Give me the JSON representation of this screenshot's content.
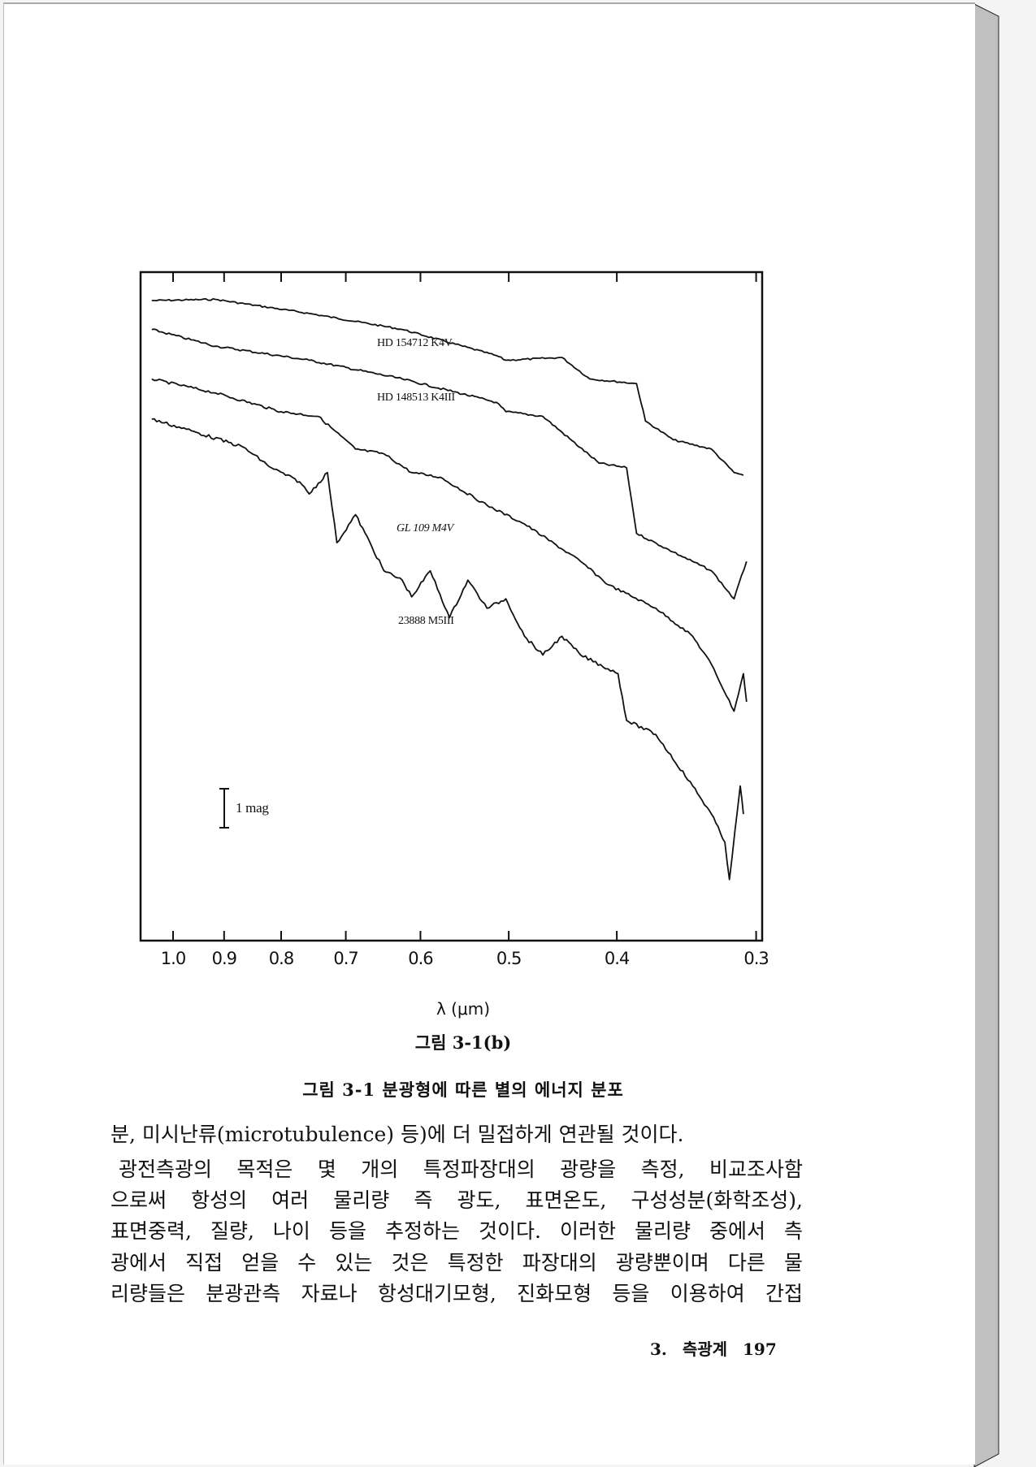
{
  "figure": {
    "subfigure_label": "그림 3-1(b)",
    "caption": "그림 3-1  분광형에 따른 별의 에너지 분포"
  },
  "body_text": [
    "분, 미시난류(microtubulence) 등)에 더 밀접하게 연관될 것이다.",
    "광전측광의 목적은 몇 개의 특정파장대의 광량을 측정, 비교조사함",
    "으로써 항성의 여러 물리량 즉 광도, 표면온도, 구성성분(화학조성),",
    "표면중력, 질량, 나이 등을 추정하는 것이다. 이러한 물리량 중에서 측",
    "광에서 직접 얻을 수 있는 것은 특정한 파장대의 광량뿐이며 다른 물",
    "리량들은 분광관측 자료나 항성대기모형, 진화모형 등을 이용하여 간접"
  ],
  "footer": {
    "chapter": "3. 측광계",
    "page_number": "197"
  },
  "chart_data": {
    "type": "line",
    "title": "",
    "xlabel": "λ (μm)",
    "ylabel": "",
    "x_scale": "log",
    "x_reversed": true,
    "xlim": [
      1.05,
      0.296
    ],
    "x_ticks": [
      1.0,
      0.9,
      0.8,
      0.7,
      0.6,
      0.5,
      0.4,
      0.3
    ],
    "x_tick_labels": [
      "1.0",
      "0.9",
      "0.8",
      "0.7",
      "0.6",
      "0.5",
      "0.4",
      "0.3"
    ],
    "y_units": "relative magnitude (increasing downward)",
    "ylim": [
      0,
      17.1
    ],
    "grid": false,
    "scale_bar_label": "1 mag",
    "scale_bar_value": 1,
    "line_color": "#111111",
    "series": [
      {
        "name": "HD 154712 K4V",
        "points": [
          [
            1.045,
            0.73
          ],
          [
            0.916,
            0.7
          ],
          [
            0.755,
            1.06
          ],
          [
            0.623,
            1.47
          ],
          [
            0.513,
            2.14
          ],
          [
            0.503,
            2.26
          ],
          [
            0.448,
            2.19
          ],
          [
            0.423,
            2.74
          ],
          [
            0.384,
            2.86
          ],
          [
            0.377,
            3.82
          ],
          [
            0.356,
            4.3
          ],
          [
            0.329,
            4.54
          ],
          [
            0.314,
            5.14
          ],
          [
            0.308,
            5.21
          ]
        ]
      },
      {
        "name": "HD 148513 K4III",
        "points": [
          [
            1.045,
            1.47
          ],
          [
            0.916,
            1.9
          ],
          [
            0.755,
            2.26
          ],
          [
            0.623,
            2.74
          ],
          [
            0.513,
            3.34
          ],
          [
            0.503,
            3.58
          ],
          [
            0.466,
            3.7
          ],
          [
            0.415,
            4.9
          ],
          [
            0.392,
            5.02
          ],
          [
            0.384,
            6.7
          ],
          [
            0.356,
            7.18
          ],
          [
            0.329,
            7.66
          ],
          [
            0.314,
            8.38
          ],
          [
            0.306,
            7.42
          ]
        ]
      },
      {
        "name": "GL 109 M4V",
        "points": [
          [
            1.045,
            2.74
          ],
          [
            0.916,
            3.1
          ],
          [
            0.8,
            3.58
          ],
          [
            0.741,
            3.7
          ],
          [
            0.686,
            4.54
          ],
          [
            0.647,
            4.66
          ],
          [
            0.611,
            5.14
          ],
          [
            0.576,
            5.26
          ],
          [
            0.523,
            5.98
          ],
          [
            0.484,
            6.46
          ],
          [
            0.431,
            7.42
          ],
          [
            0.407,
            8.02
          ],
          [
            0.369,
            8.62
          ],
          [
            0.342,
            9.34
          ],
          [
            0.329,
            10.06
          ],
          [
            0.314,
            11.26
          ],
          [
            0.308,
            10.3
          ],
          [
            0.306,
            11.02
          ]
        ]
      },
      {
        "name": "23888 M5III",
        "points": [
          [
            1.045,
            3.77
          ],
          [
            0.953,
            4.11
          ],
          [
            0.865,
            4.49
          ],
          [
            0.816,
            5.02
          ],
          [
            0.77,
            5.38
          ],
          [
            0.755,
            5.69
          ],
          [
            0.727,
            5.14
          ],
          [
            0.713,
            6.94
          ],
          [
            0.686,
            6.22
          ],
          [
            0.647,
            7.66
          ],
          [
            0.623,
            7.9
          ],
          [
            0.611,
            8.33
          ],
          [
            0.588,
            7.66
          ],
          [
            0.565,
            8.86
          ],
          [
            0.544,
            7.9
          ],
          [
            0.523,
            8.62
          ],
          [
            0.503,
            8.38
          ],
          [
            0.484,
            9.34
          ],
          [
            0.466,
            9.82
          ],
          [
            0.448,
            9.34
          ],
          [
            0.431,
            9.82
          ],
          [
            0.399,
            10.3
          ],
          [
            0.392,
            11.5
          ],
          [
            0.369,
            11.86
          ],
          [
            0.342,
            13.18
          ],
          [
            0.329,
            13.9
          ],
          [
            0.32,
            14.62
          ],
          [
            0.317,
            15.58
          ],
          [
            0.31,
            13.18
          ],
          [
            0.308,
            13.9
          ]
        ]
      }
    ]
  }
}
